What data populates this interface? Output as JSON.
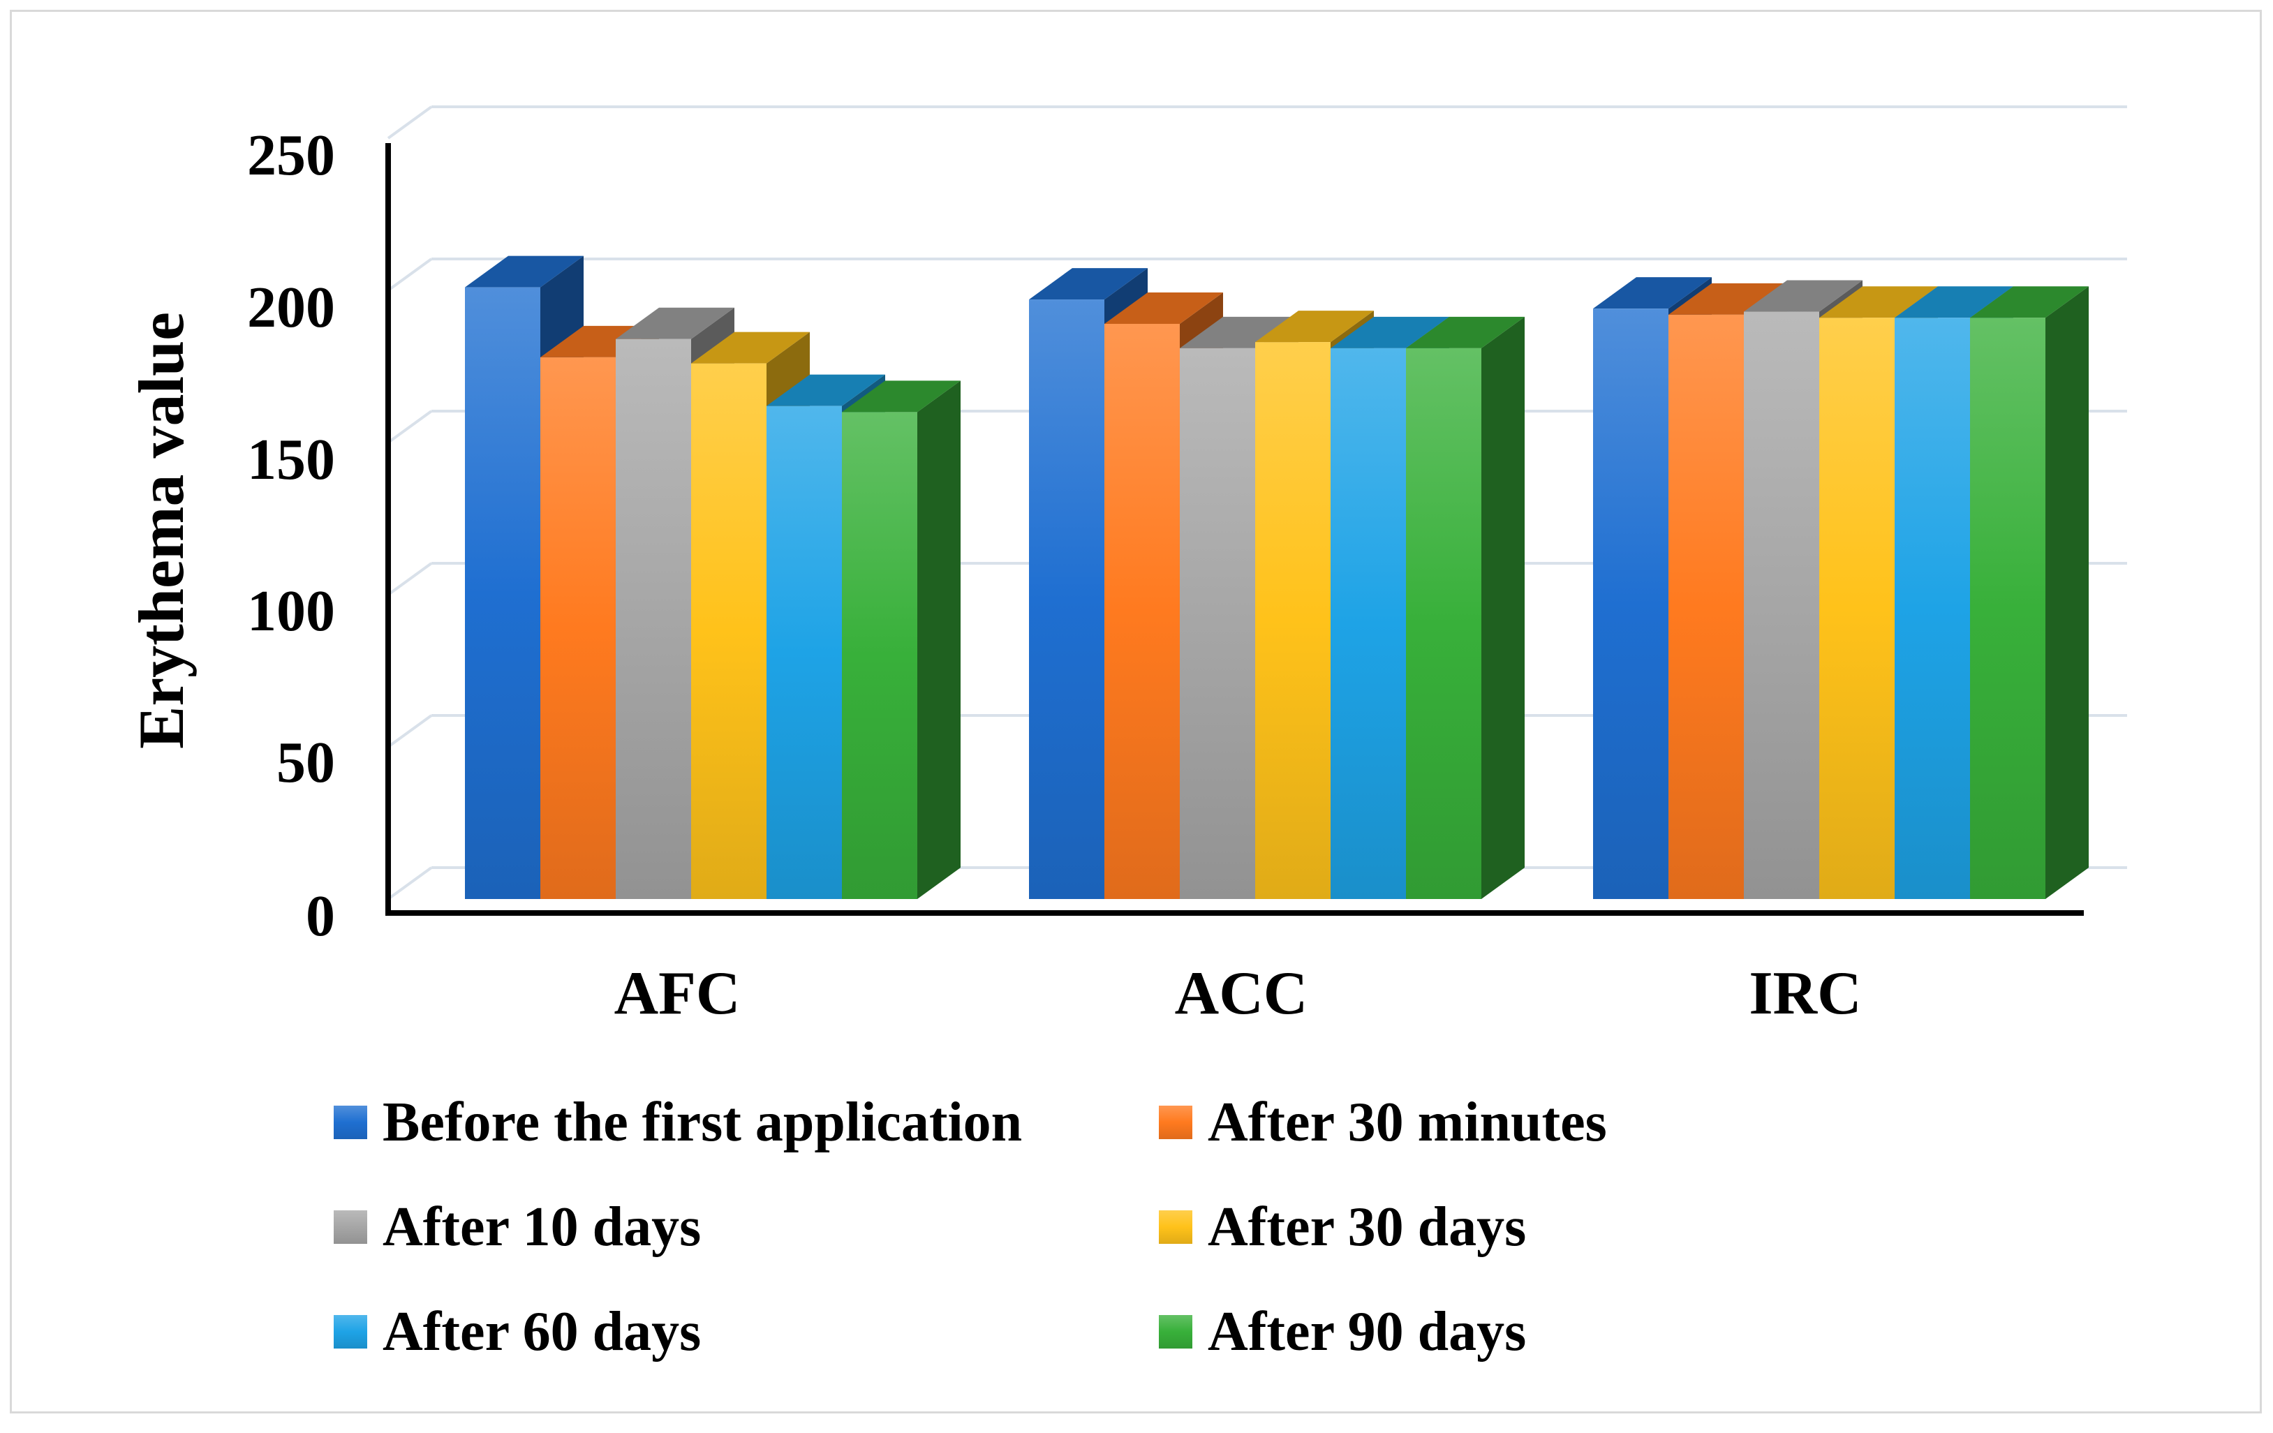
{
  "chart_data": {
    "type": "bar",
    "style": "3d-clustered-column",
    "title": "",
    "xlabel": "",
    "ylabel": "Erythema value",
    "ylim": [
      0,
      250
    ],
    "yticks": [
      0,
      50,
      100,
      150,
      200,
      250
    ],
    "grid": true,
    "legend_position": "bottom",
    "categories": [
      "AFC",
      "ACC",
      "IRC"
    ],
    "series": [
      {
        "name": "Before the first application",
        "color": "#1f6fd1",
        "values": [
          201,
          197,
          194
        ]
      },
      {
        "name": "After 30 minutes",
        "color": "#ff7a1f",
        "values": [
          178,
          189,
          192
        ]
      },
      {
        "name": "After 10 days",
        "color": "#a6a6a6",
        "values": [
          184,
          181,
          193
        ]
      },
      {
        "name": "After 30 days",
        "color": "#ffc21a",
        "values": [
          176,
          183,
          191
        ]
      },
      {
        "name": "After 60 days",
        "color": "#1ea3e6",
        "values": [
          162,
          181,
          191
        ]
      },
      {
        "name": "After 90 days",
        "color": "#38b03a",
        "values": [
          160,
          181,
          191
        ]
      }
    ]
  }
}
